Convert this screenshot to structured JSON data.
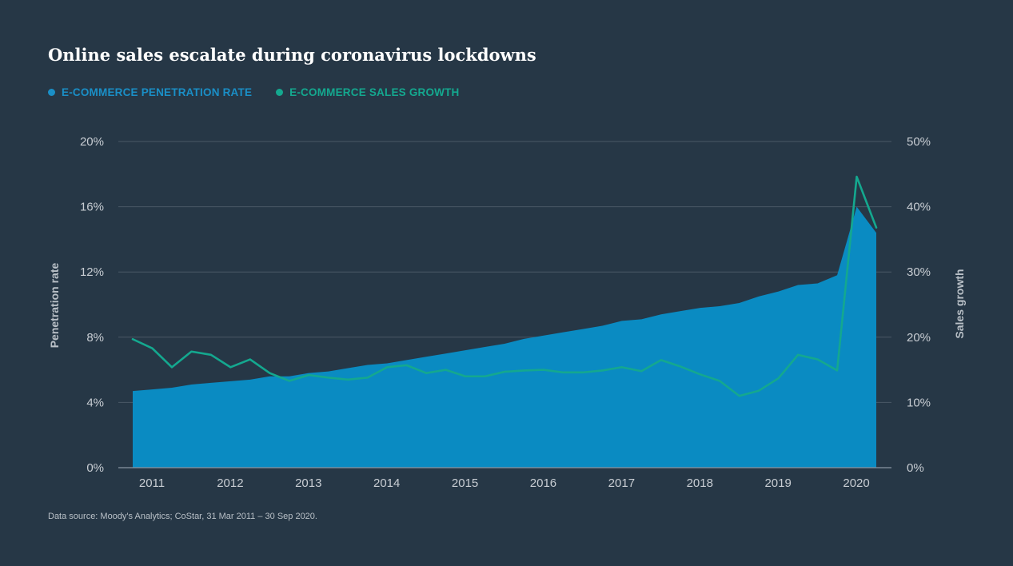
{
  "title": "Online sales escalate during coronavirus lockdowns",
  "legend": [
    {
      "label": "E-COMMERCE PENETRATION RATE",
      "color": "#1a8fc7"
    },
    {
      "label": "E-COMMERCE SALES GROWTH",
      "color": "#14a88f"
    }
  ],
  "source": "Data source: Moody's Analytics; CoStar, 31 Mar 2011 – 30 Sep 2020.",
  "chart_data": {
    "type": "area",
    "x_tick_labels": [
      "2011",
      "2012",
      "2013",
      "2014",
      "2015",
      "2016",
      "2017",
      "2018",
      "2019",
      "2020"
    ],
    "x": [
      "2011-Q1",
      "2011-Q2",
      "2011-Q3",
      "2011-Q4",
      "2012-Q1",
      "2012-Q2",
      "2012-Q3",
      "2012-Q4",
      "2013-Q1",
      "2013-Q2",
      "2013-Q3",
      "2013-Q4",
      "2014-Q1",
      "2014-Q2",
      "2014-Q3",
      "2014-Q4",
      "2015-Q1",
      "2015-Q2",
      "2015-Q3",
      "2015-Q4",
      "2016-Q1",
      "2016-Q2",
      "2016-Q3",
      "2016-Q4",
      "2017-Q1",
      "2017-Q2",
      "2017-Q3",
      "2017-Q4",
      "2018-Q1",
      "2018-Q2",
      "2018-Q3",
      "2018-Q4",
      "2019-Q1",
      "2019-Q2",
      "2019-Q3",
      "2019-Q4",
      "2020-Q1",
      "2020-Q2",
      "2020-Q3"
    ],
    "left_axis": {
      "label": "Penetration rate",
      "ticks": [
        "0%",
        "4%",
        "8%",
        "12%",
        "16%",
        "20%"
      ],
      "range": [
        0,
        20
      ]
    },
    "right_axis": {
      "label": "Sales growth",
      "ticks": [
        "0%",
        "10%",
        "20%",
        "30%",
        "40%",
        "50%"
      ],
      "range": [
        0,
        50
      ]
    },
    "grid": true,
    "series": [
      {
        "name": "E-COMMERCE PENETRATION RATE",
        "type": "area",
        "axis": "left",
        "color": "#0a8bc2",
        "values": [
          4.7,
          4.8,
          4.9,
          5.1,
          5.2,
          5.3,
          5.4,
          5.6,
          5.6,
          5.8,
          5.9,
          6.1,
          6.3,
          6.4,
          6.6,
          6.8,
          7.0,
          7.2,
          7.4,
          7.6,
          7.9,
          8.1,
          8.3,
          8.5,
          8.7,
          9.0,
          9.1,
          9.4,
          9.6,
          9.8,
          9.9,
          10.1,
          10.5,
          10.8,
          11.2,
          11.3,
          11.8,
          16.0,
          14.4
        ]
      },
      {
        "name": "E-COMMERCE SALES GROWTH",
        "type": "line",
        "axis": "right",
        "color": "#14a88f",
        "values": [
          19.7,
          18.3,
          15.4,
          17.8,
          17.3,
          15.4,
          16.6,
          14.5,
          13.3,
          14.2,
          13.8,
          13.5,
          13.8,
          15.4,
          15.7,
          14.5,
          15.0,
          14.0,
          14.0,
          14.7,
          14.9,
          15.0,
          14.6,
          14.6,
          14.9,
          15.4,
          14.8,
          16.5,
          15.5,
          14.3,
          13.3,
          11.0,
          11.8,
          13.7,
          17.3,
          16.6,
          14.9,
          44.6,
          36.8
        ]
      }
    ]
  }
}
